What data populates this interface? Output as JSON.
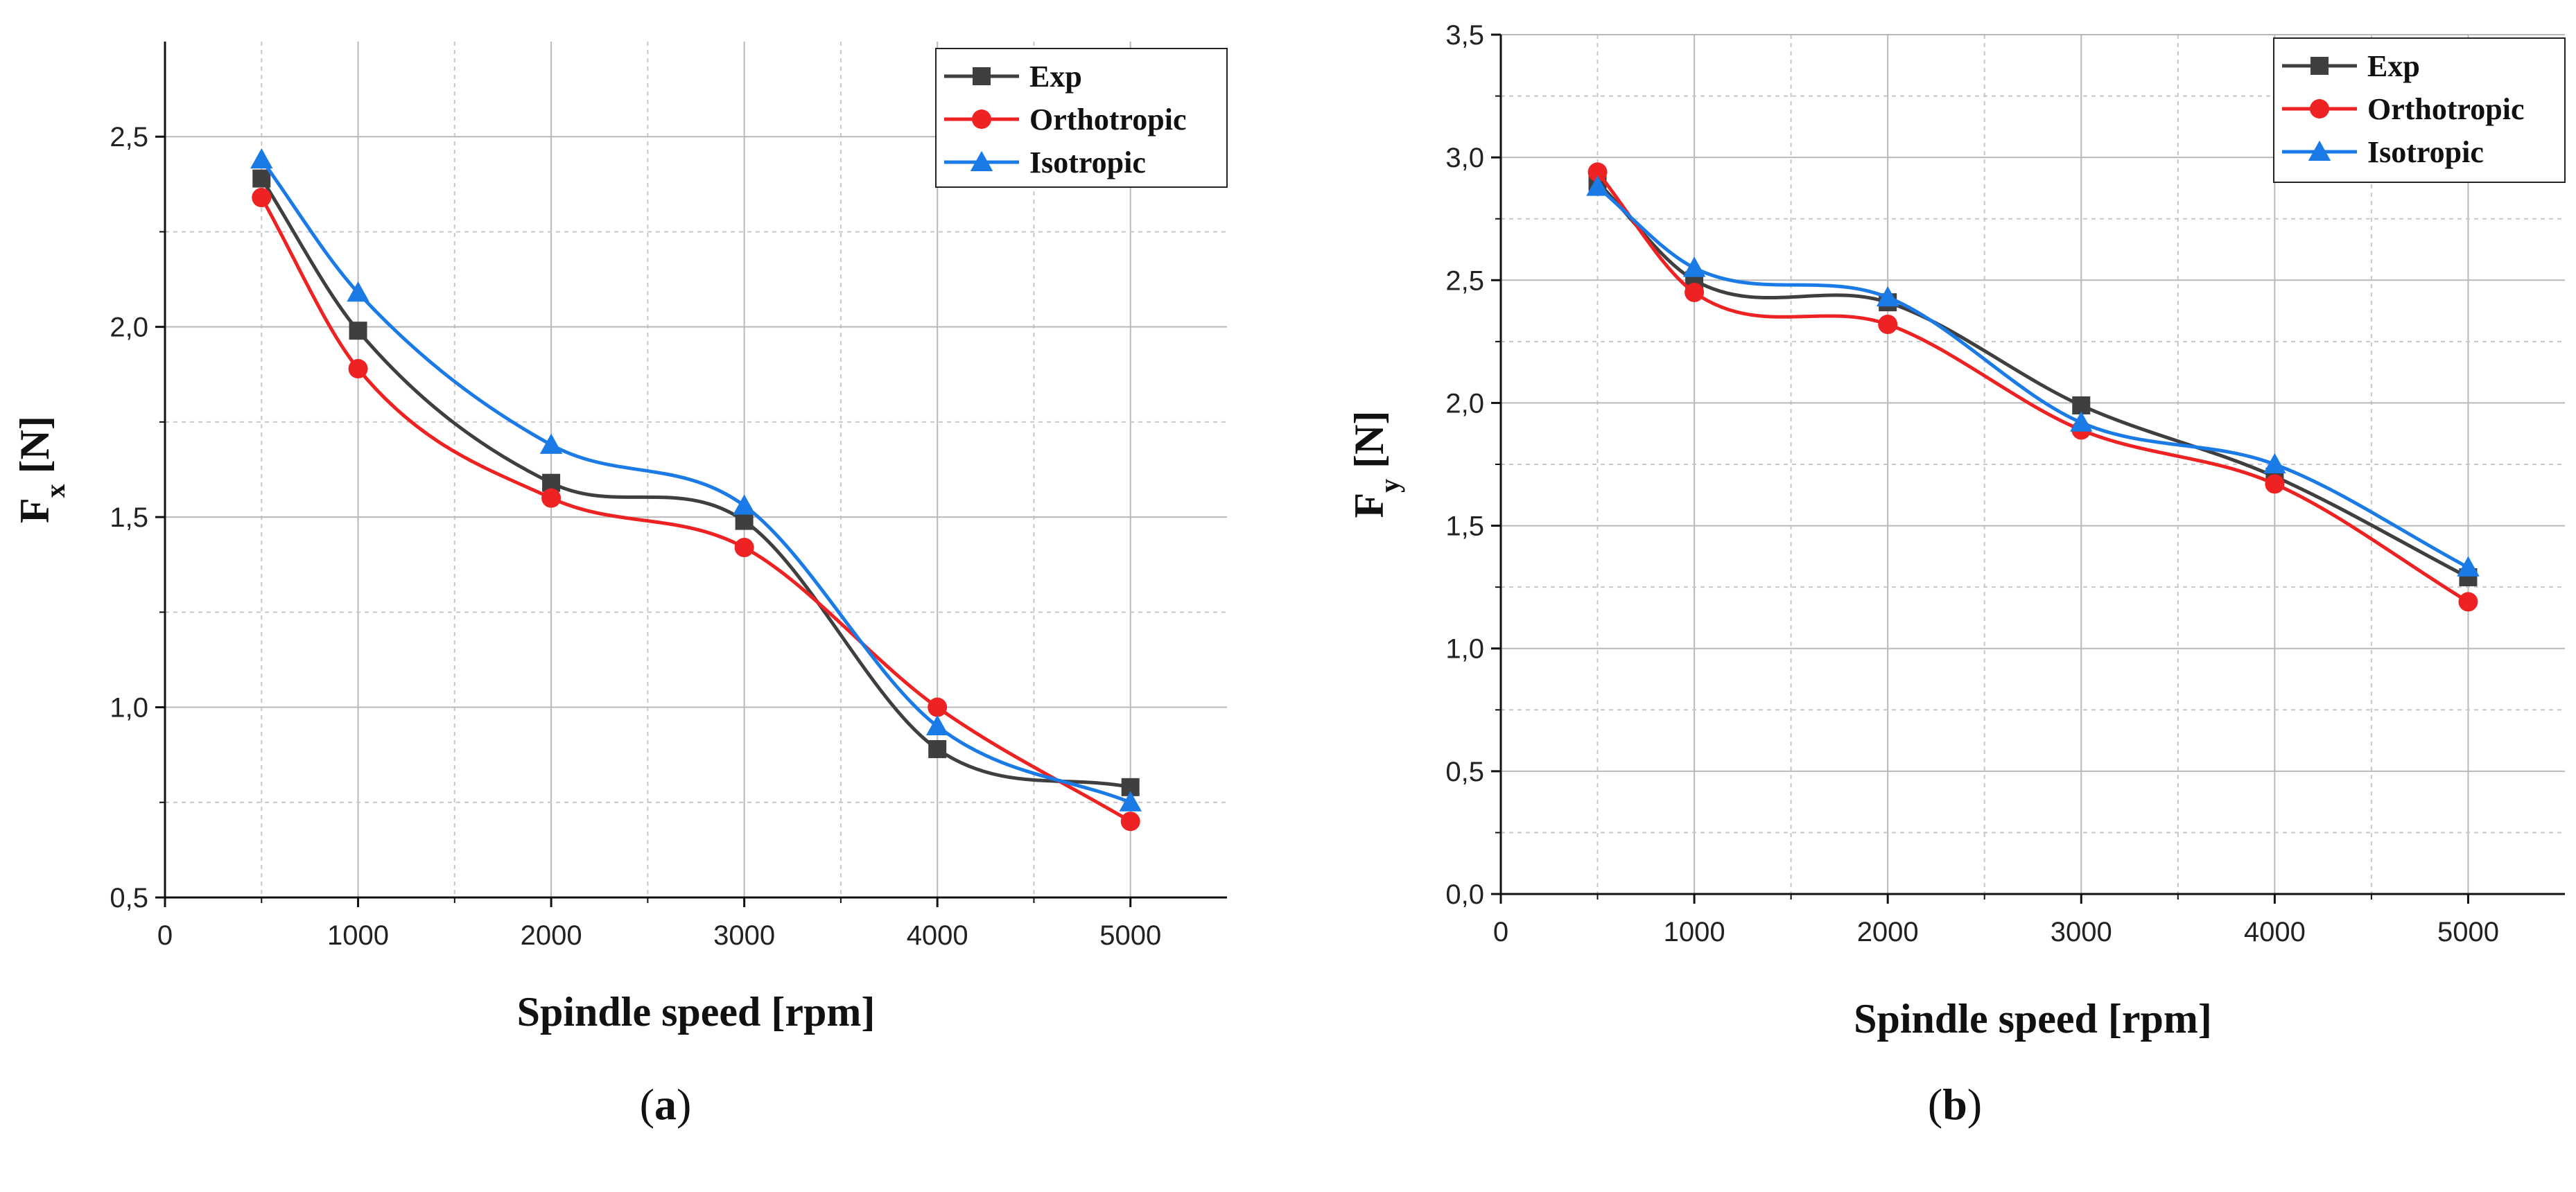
{
  "chart_data": [
    {
      "type": "line",
      "panel": "a",
      "caption": {
        "open": "(",
        "letter": "a",
        "close": ")"
      },
      "xlabel": "Spindle speed [rpm]",
      "ylabel": {
        "main": "F",
        "sub": "x",
        "unit": " [N]"
      },
      "xlim": [
        0,
        5500
      ],
      "ylim": [
        0.5,
        2.75
      ],
      "xticks": [
        0,
        1000,
        2000,
        3000,
        4000,
        5000
      ],
      "xtick_labels": [
        "0",
        "1000",
        "2000",
        "3000",
        "4000",
        "5000"
      ],
      "yticks": [
        0.5,
        1.0,
        1.5,
        2.0,
        2.5
      ],
      "ytick_labels": [
        "0,5",
        "1,0",
        "1,5",
        "2,0",
        "2,5"
      ],
      "grid": true,
      "legend_position": "top-right",
      "x": [
        500,
        1000,
        2000,
        3000,
        4000,
        5000
      ],
      "series": [
        {
          "name": "Exp",
          "marker": "square",
          "color": "#3f3f3f",
          "values": [
            2.39,
            1.99,
            1.59,
            1.49,
            0.89,
            0.79
          ]
        },
        {
          "name": "Orthotropic",
          "marker": "circle",
          "color": "#ee2222",
          "values": [
            2.34,
            1.89,
            1.55,
            1.42,
            1.0,
            0.7
          ]
        },
        {
          "name": "Isotropic",
          "marker": "triangle",
          "color": "#1a7be6",
          "values": [
            2.44,
            2.09,
            1.69,
            1.53,
            0.95,
            0.75
          ]
        }
      ]
    },
    {
      "type": "line",
      "panel": "b",
      "caption": {
        "open": "(",
        "letter": "b",
        "close": ")"
      },
      "xlabel": "Spindle speed [rpm]",
      "ylabel": {
        "main": "F",
        "sub": "y",
        "unit": " [N]"
      },
      "xlim": [
        0,
        5500
      ],
      "ylim": [
        0.0,
        3.5
      ],
      "xticks": [
        0,
        1000,
        2000,
        3000,
        4000,
        5000
      ],
      "xtick_labels": [
        "0",
        "1000",
        "2000",
        "3000",
        "4000",
        "5000"
      ],
      "yticks": [
        0.0,
        0.5,
        1.0,
        1.5,
        2.0,
        2.5,
        3.0,
        3.5
      ],
      "ytick_labels": [
        "0,0",
        "0,5",
        "1,0",
        "1,5",
        "2,0",
        "2,5",
        "3,0",
        "3,5"
      ],
      "grid": true,
      "legend_position": "top-right",
      "x": [
        500,
        1000,
        2000,
        3000,
        4000,
        5000
      ],
      "series": [
        {
          "name": "Exp",
          "marker": "square",
          "color": "#3f3f3f",
          "values": [
            2.9,
            2.5,
            2.41,
            1.99,
            1.7,
            1.29
          ]
        },
        {
          "name": "Orthotropic",
          "marker": "circle",
          "color": "#ee2222",
          "values": [
            2.94,
            2.45,
            2.32,
            1.89,
            1.67,
            1.19
          ]
        },
        {
          "name": "Isotropic",
          "marker": "triangle",
          "color": "#1a7be6",
          "values": [
            2.88,
            2.55,
            2.43,
            1.92,
            1.75,
            1.33
          ]
        }
      ]
    }
  ]
}
